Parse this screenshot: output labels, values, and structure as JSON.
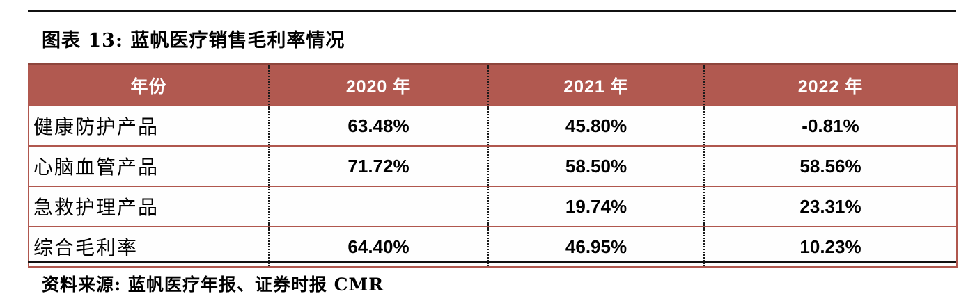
{
  "figure": {
    "title": "图表 13: 蓝帆医疗销售毛利率情况",
    "source": "资料来源: 蓝帆医疗年报、证券时报 CMR"
  },
  "table": {
    "headers": [
      "年份",
      "2020 年",
      "2021 年",
      "2022 年"
    ],
    "rows": [
      {
        "label": "健康防护产品",
        "values": [
          "63.48%",
          "45.80%",
          "-0.81%"
        ]
      },
      {
        "label": "心脑血管产品",
        "values": [
          "71.72%",
          "58.50%",
          "58.56%"
        ]
      },
      {
        "label": "急救护理产品",
        "values": [
          "",
          "19.74%",
          "23.31%"
        ]
      },
      {
        "label": "综合毛利率",
        "values": [
          "64.40%",
          "46.95%",
          "10.23%"
        ]
      }
    ]
  },
  "colors": {
    "header_background": "#b15950",
    "row_border": "#b0574e",
    "rule": "#111111",
    "header_text": "#ffffff"
  },
  "chart_data": {
    "type": "table",
    "title": "图表 13: 蓝帆医疗销售毛利率情况",
    "categories": [
      "2020 年",
      "2021 年",
      "2022 年"
    ],
    "series": [
      {
        "name": "健康防护产品",
        "values": [
          63.48,
          45.8,
          -0.81
        ]
      },
      {
        "name": "心脑血管产品",
        "values": [
          71.72,
          58.5,
          58.56
        ]
      },
      {
        "name": "急救护理产品",
        "values": [
          null,
          19.74,
          23.31
        ]
      },
      {
        "name": "综合毛利率",
        "values": [
          64.4,
          46.95,
          10.23
        ]
      }
    ],
    "unit": "%",
    "source": "资料来源: 蓝帆医疗年报、证券时报 CMR"
  }
}
